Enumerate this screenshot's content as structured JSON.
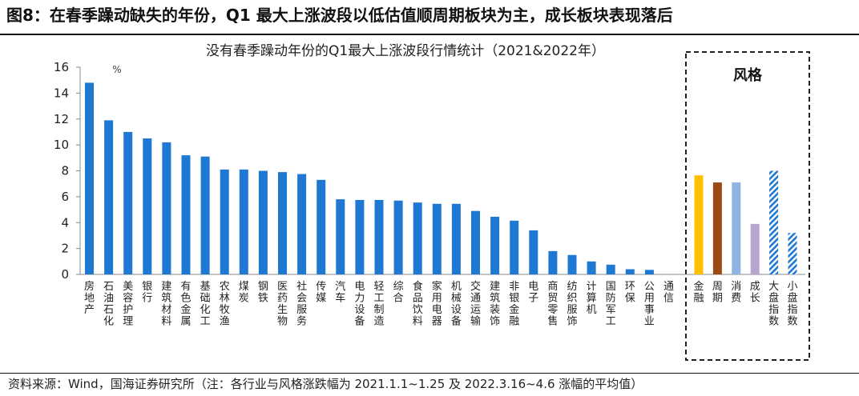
{
  "figure_title": "图8：在春季躁动缺失的年份，Q1 最大上涨波段以低估值顺周期板块为主，成长板块表现落后",
  "source_note": "资料来源：Wind，国海证券研究所（注：各行业与风格涨跌幅为 2021.1.1~1.25 及 2022.3.16~4.6 涨幅的平均值）",
  "colors": {
    "industry": "#1f78d1",
    "style_jinrong": "#ffc000",
    "style_zhouqi": "#9c4a14",
    "style_xiaofei": "#8fb4e3",
    "style_chengzhang": "#b4a6cf",
    "style_hatched": "#1f78d1"
  },
  "chart_data": {
    "type": "bar",
    "title": "没有春季躁动年份的Q1最大上涨波段行情统计（2021&2022年）",
    "ylabel": "%",
    "ylim": [
      0,
      16
    ],
    "yticks": [
      0,
      2,
      4,
      6,
      8,
      10,
      12,
      14,
      16
    ],
    "grid": false,
    "categories": [
      "房地产",
      "石油石化",
      "美容护理",
      "银行",
      "建筑材料",
      "有色金属",
      "基础化工",
      "农林牧渔",
      "煤炭",
      "钢铁",
      "医药生物",
      "社会服务",
      "传媒",
      "汽车",
      "电力设备",
      "轻工制造",
      "综合",
      "食品饮料",
      "家用电器",
      "机械设备",
      "交通运输",
      "建筑装饰",
      "非银金融",
      "电子",
      "商贸零售",
      "纺织服饰",
      "计算机",
      "国防军工",
      "环保",
      "公用事业",
      "通信"
    ],
    "values": [
      14.8,
      11.9,
      11.0,
      10.5,
      10.2,
      9.2,
      9.1,
      8.1,
      8.1,
      8.0,
      7.9,
      7.75,
      7.3,
      5.8,
      5.75,
      5.75,
      5.7,
      5.55,
      5.45,
      5.45,
      4.9,
      4.45,
      4.15,
      3.4,
      1.8,
      1.5,
      1.0,
      0.75,
      0.4,
      0.35,
      0.0
    ],
    "style_group": {
      "title": "风格",
      "categories": [
        "金融",
        "周期",
        "消费",
        "成长",
        "大盘指数",
        "小盘指数"
      ],
      "values": [
        7.65,
        7.1,
        7.1,
        3.9,
        8.0,
        3.2
      ]
    }
  }
}
